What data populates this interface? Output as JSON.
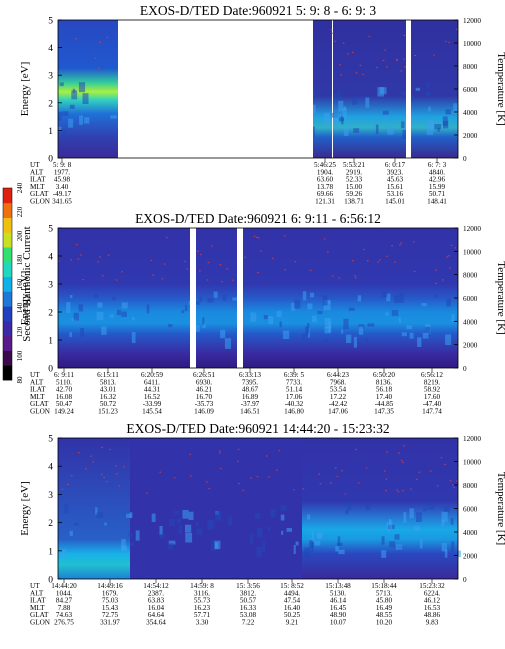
{
  "figure": {
    "colorbar": {
      "label": "Second Harmonic Current",
      "ticks": [
        "80",
        "100",
        "120",
        "140",
        "160",
        "180",
        "200",
        "220",
        "240"
      ],
      "colors": [
        "#000000",
        "#3a0a4a",
        "#5a1a8a",
        "#3a2aa8",
        "#2040c0",
        "#1e78d8",
        "#10b0e8",
        "#20d8c0",
        "#30e070",
        "#c8e020",
        "#f0c010",
        "#f07010",
        "#e02010"
      ]
    },
    "labels": {
      "energy": "Energy [eV]",
      "temperature": "Temperature [K]",
      "energy_ticks": [
        "0",
        "1",
        "2",
        "3",
        "4",
        "5"
      ],
      "temp_ticks": [
        "0",
        "2000",
        "4000",
        "6000",
        "8000",
        "10000",
        "12000"
      ],
      "row_labels": [
        "UT",
        "ALT",
        "ILAT",
        "MLT",
        "GLAT",
        "GLON"
      ]
    }
  },
  "panels": [
    {
      "title": "EXOS-D/TED   Date:960921  5: 9: 8 - 6: 9: 3",
      "columns": [
        {
          "UT": "5: 9: 8",
          "ALT": "1977.",
          "ILAT": "45.98",
          "MLT": "3.40",
          "GLAT": "-49.17",
          "GLON": "341.65"
        },
        {
          "UT": "5:46:25",
          "ALT": "1904.",
          "ILAT": "63.60",
          "MLT": "13.78",
          "GLAT": "69.66",
          "GLON": "121.31"
        },
        {
          "UT": "5:53:21",
          "ALT": "2919.",
          "ILAT": "52.33",
          "MLT": "15.00",
          "GLAT": "59.26",
          "GLON": "138.71"
        },
        {
          "UT": "6: 0:17",
          "ALT": "3923.",
          "ILAT": "45.63",
          "MLT": "15.61",
          "GLAT": "53.16",
          "GLON": "145.01"
        },
        {
          "UT": "6: 7: 3",
          "ALT": "4840.",
          "ILAT": "42.96",
          "MLT": "15.99",
          "GLAT": "50.71",
          "GLON": "148.41"
        }
      ]
    },
    {
      "title": "EXOS-D/TED   Date:960921  6: 9:11 - 6:56:12",
      "columns": [
        {
          "UT": "6: 9:11",
          "ALT": "5110.",
          "ILAT": "42.70",
          "MLT": "16.08",
          "GLAT": "50.47",
          "GLON": "149.24"
        },
        {
          "UT": "6:15:11",
          "ALT": "5813.",
          "ILAT": "43.01",
          "MLT": "16.32",
          "GLAT": "50.72",
          "GLON": "151.23"
        },
        {
          "UT": "6:20:59",
          "ALT": "6411.",
          "ILAT": "44.31",
          "MLT": "16.52",
          "GLAT": "-33.99",
          "GLON": "145.54"
        },
        {
          "UT": "6:26:51",
          "ALT": "6930.",
          "ILAT": "46.21",
          "MLT": "16.70",
          "GLAT": "-35.73",
          "GLON": "146.09"
        },
        {
          "UT": "6:33:13",
          "ALT": "7395.",
          "ILAT": "48.67",
          "MLT": "16.89",
          "GLAT": "-37.97",
          "GLON": "146.51"
        },
        {
          "UT": "6:39: 5",
          "ALT": "7733.",
          "ILAT": "51.14",
          "MLT": "17.06",
          "GLAT": "-40.32",
          "GLON": "146.80"
        },
        {
          "UT": "6:44:23",
          "ALT": "7968.",
          "ILAT": "53.54",
          "MLT": "17.22",
          "GLAT": "-42.42",
          "GLON": "147.06"
        },
        {
          "UT": "6:50:20",
          "ALT": "8136.",
          "ILAT": "56.18",
          "MLT": "17.40",
          "GLAT": "-44.85",
          "GLON": "147.35"
        },
        {
          "UT": "6:56:12",
          "ALT": "8219.",
          "ILAT": "58.92",
          "MLT": "17.60",
          "GLAT": "-47.40",
          "GLON": "147.74"
        }
      ]
    },
    {
      "title": "EXOS-D/TED   Date:960921  14:44:20 - 15:23:32",
      "columns": [
        {
          "UT": "14:44:20",
          "ALT": "1044.",
          "ILAT": "84.27",
          "MLT": "7.88",
          "GLAT": "74.63",
          "GLON": "276.75"
        },
        {
          "UT": "14:49:16",
          "ALT": "1679.",
          "ILAT": "75.03",
          "MLT": "15.43",
          "GLAT": "72.75",
          "GLON": "331.97"
        },
        {
          "UT": "14:54:12",
          "ALT": "2387.",
          "ILAT": "63.83",
          "MLT": "16.04",
          "GLAT": "64.64",
          "GLON": "354.64"
        },
        {
          "UT": "14:59: 8",
          "ALT": "3116.",
          "ILAT": "55.73",
          "MLT": "16.23",
          "GLAT": "57.71",
          "GLON": "3.30"
        },
        {
          "UT": "15: 3:56",
          "ALT": "3812.",
          "ILAT": "50.57",
          "MLT": "16.33",
          "GLAT": "53.08",
          "GLON": "7.22"
        },
        {
          "UT": "15: 8:52",
          "ALT": "4494.",
          "ILAT": "47.54",
          "MLT": "16.40",
          "GLAT": "50.25",
          "GLON": "9.21"
        },
        {
          "UT": "15:13:48",
          "ALT": "5130.",
          "ILAT": "46.14",
          "MLT": "16.45",
          "GLAT": "48.90",
          "GLON": "10.07"
        },
        {
          "UT": "15:18:44",
          "ALT": "5713.",
          "ILAT": "45.80",
          "MLT": "16.49",
          "GLAT": "48.55",
          "GLON": "10.20"
        },
        {
          "UT": "15:23:32",
          "ALT": "6224.",
          "ILAT": "46.12",
          "MLT": "16.53",
          "GLAT": "48.86",
          "GLON": "9.83"
        }
      ]
    }
  ],
  "chart_data": [
    {
      "type": "heatmap",
      "title": "EXOS-D/TED   Date:960921  5: 9: 8 - 6: 9: 3",
      "xlabel": "",
      "ylabel": "Energy [eV]",
      "y2label": "Temperature [K]",
      "ylim": [
        0,
        5
      ],
      "y2lim": [
        0,
        12000
      ],
      "x": [
        "5: 9: 8",
        "5:46:25",
        "5:53:21",
        "6: 0:17",
        "6: 7: 3"
      ]
    },
    {
      "type": "heatmap",
      "title": "EXOS-D/TED   Date:960921  6: 9:11 - 6:56:12",
      "xlabel": "",
      "ylabel": "Energy [eV]",
      "y2label": "Temperature [K]",
      "ylim": [
        0,
        5
      ],
      "y2lim": [
        0,
        12000
      ],
      "x": [
        "6: 9:11",
        "6:15:11",
        "6:20:59",
        "6:26:51",
        "6:33:13",
        "6:39: 5",
        "6:44:23",
        "6:50:20",
        "6:56:12"
      ]
    },
    {
      "type": "heatmap",
      "title": "EXOS-D/TED   Date:960921  14:44:20 - 15:23:32",
      "xlabel": "",
      "ylabel": "Energy [eV]",
      "y2label": "Temperature [K]",
      "ylim": [
        0,
        5
      ],
      "y2lim": [
        0,
        12000
      ],
      "x": [
        "14:44:20",
        "14:49:16",
        "14:54:12",
        "14:59: 8",
        "15: 3:56",
        "15: 8:52",
        "15:13:48",
        "15:18:44",
        "15:23:32"
      ]
    }
  ]
}
